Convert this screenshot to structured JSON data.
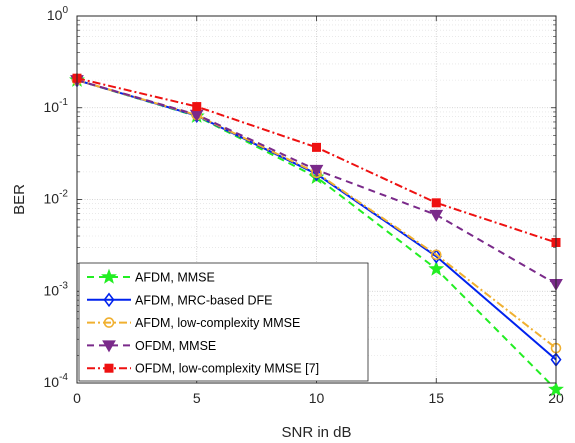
{
  "chart_data": {
    "type": "line",
    "xlabel": "SNR in dB",
    "ylabel": "BER",
    "x_ticks": [
      0,
      5,
      10,
      15,
      20
    ],
    "xlim": [
      0,
      20
    ],
    "ylim": [
      0.0001,
      1
    ],
    "y_scale": "log",
    "y_tick_base": "10",
    "y_tick_exponents": [
      "-4",
      "-3",
      "-2",
      "-1",
      "0"
    ],
    "grid": "major and minor, dotted",
    "legend_position": "bottom-left",
    "x": [
      0,
      5,
      10,
      15,
      20
    ],
    "series": [
      {
        "name": "AFDM, MMSE",
        "values": [
          0.2,
          0.081,
          0.0175,
          0.00175,
          8.5e-05
        ],
        "color": "#22ee22",
        "line_style": "dashed",
        "marker": "star"
      },
      {
        "name": "AFDM, MRC-based DFE",
        "values": [
          0.2,
          0.082,
          0.019,
          0.0024,
          0.00018
        ],
        "color": "#0022ee",
        "line_style": "solid",
        "marker": "diamond"
      },
      {
        "name": "AFDM, low-complexity MMSE",
        "values": [
          0.2,
          0.083,
          0.0195,
          0.0025,
          0.00024
        ],
        "color": "#f0b030",
        "line_style": "dash-dot",
        "marker": "circle"
      },
      {
        "name": "OFDM, MMSE",
        "values": [
          0.2,
          0.084,
          0.021,
          0.0068,
          0.0012
        ],
        "color": "#7a2a8a",
        "line_style": "dashed",
        "marker": "triangle-down"
      },
      {
        "name": "OFDM, low-complexity MMSE [7]",
        "values": [
          0.21,
          0.103,
          0.037,
          0.0092,
          0.0034
        ],
        "color": "#ee1111",
        "line_style": "dash-dot",
        "marker": "square"
      }
    ]
  }
}
